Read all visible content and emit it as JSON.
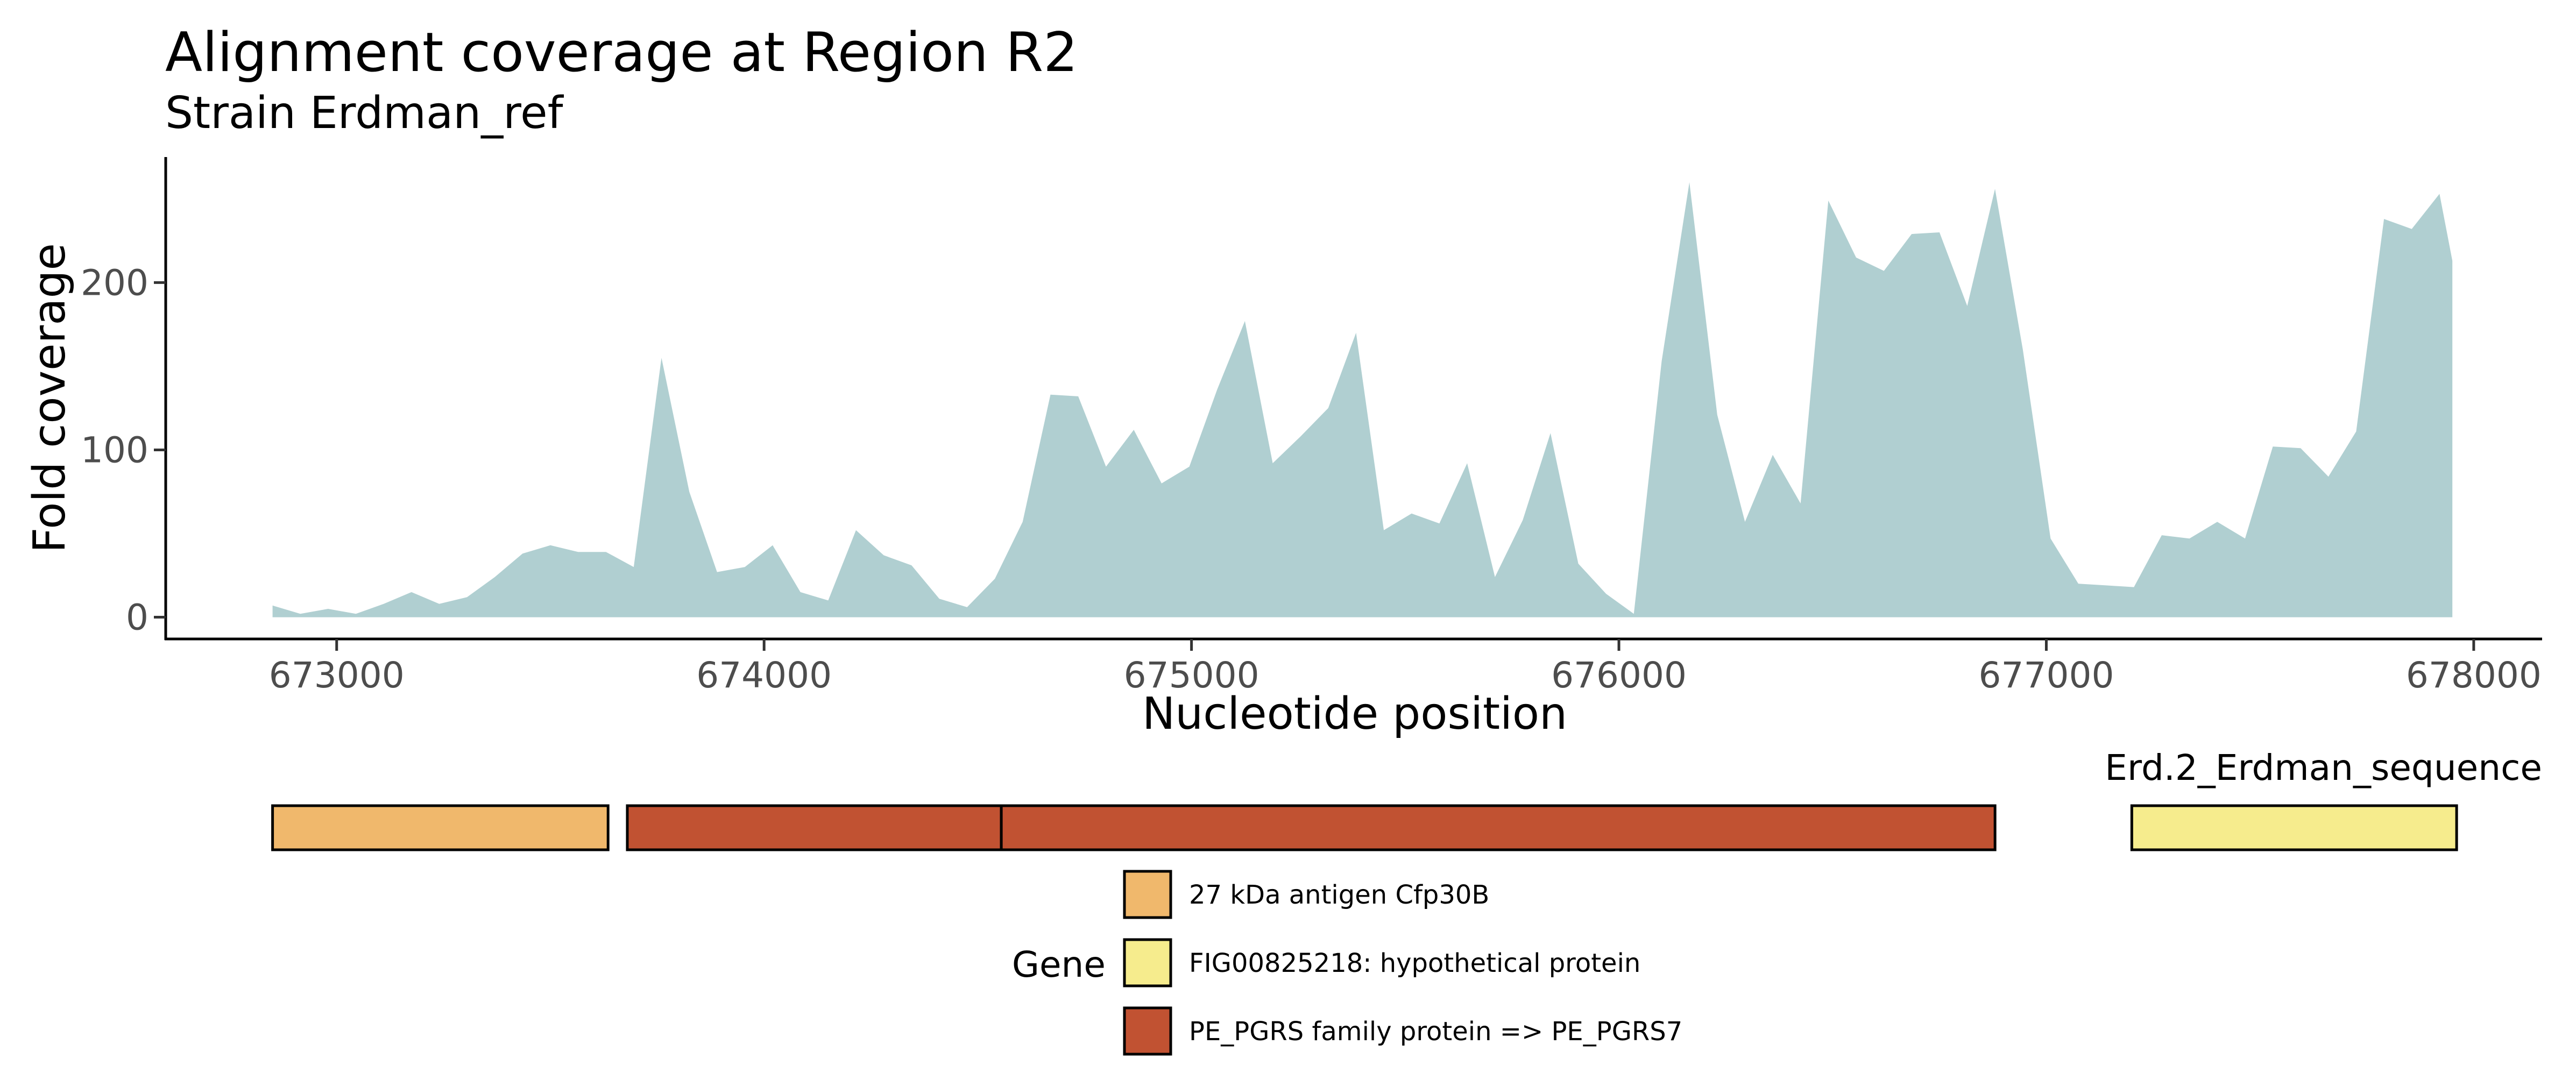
{
  "chart_data": {
    "type": "area",
    "title": "Alignment coverage at Region R2",
    "subtitle": "Strain Erdman_ref",
    "xlabel": "Nucleotide position",
    "ylabel": "Fold coverage",
    "xlim": [
      672600,
      678160
    ],
    "ylim": [
      -13,
      275
    ],
    "xticks": [
      673000,
      674000,
      675000,
      676000,
      677000,
      678000
    ],
    "xtick_labels": [
      "673000",
      "674000",
      "675000",
      "676000",
      "677000",
      "678000"
    ],
    "yticks": [
      0,
      100,
      200
    ],
    "ytick_labels": [
      "0",
      "100",
      "200"
    ],
    "grid": false,
    "fill_color": "#b0cfd1",
    "series": [
      {
        "x": [
          672850,
          672915,
          672980,
          673045,
          673110,
          673175,
          673240,
          673305,
          673370,
          673435,
          673500,
          673565,
          673630,
          673695,
          673760,
          673825,
          673890,
          673955,
          674020,
          674085,
          674150,
          674215,
          674280,
          674345,
          674410,
          674475,
          674540,
          674605,
          674670,
          674735,
          674800,
          674865,
          674930,
          674995,
          675060,
          675125,
          675190,
          675255,
          675320,
          675385,
          675450,
          675515,
          675580,
          675645,
          675710,
          675775,
          675840,
          675905,
          675970,
          676035,
          676100,
          676165,
          676230,
          676295,
          676360,
          676425,
          676490,
          676555,
          676620,
          676685,
          676750,
          676815,
          676880,
          676945,
          677010,
          677075,
          677140,
          677205,
          677270,
          677335,
          677400,
          677465,
          677530,
          677595,
          677660,
          677725,
          677790,
          677855,
          677920,
          677950
        ],
        "values": [
          7,
          2,
          5,
          2,
          8,
          15,
          8,
          12,
          24,
          38,
          43,
          39,
          39,
          30,
          155,
          75,
          27,
          30,
          43,
          15,
          10,
          52,
          37,
          31,
          11,
          6,
          23,
          57,
          133,
          132,
          90,
          112,
          80,
          90,
          136,
          177,
          92,
          108,
          125,
          170,
          52,
          62,
          56,
          92,
          24,
          58,
          110,
          32,
          14,
          2,
          153,
          260,
          121,
          57,
          97,
          68,
          249,
          215,
          207,
          229,
          230,
          186,
          256,
          160,
          47,
          20,
          19,
          18,
          49,
          47,
          57,
          47,
          102,
          101,
          84,
          111,
          238,
          232,
          253,
          213
        ]
      }
    ]
  },
  "gene_track": {
    "label": "Erd.2_Erdman_sequence",
    "genes": [
      {
        "start": 672850,
        "end": 673635,
        "color": "#f0b86c"
      },
      {
        "start": 673680,
        "end": 674555,
        "color": "#c15232"
      },
      {
        "start": 674555,
        "end": 676880,
        "color": "#c15232"
      },
      {
        "start": 677200,
        "end": 677960,
        "color": "#f6ec8d"
      }
    ]
  },
  "legend": {
    "title": "Gene",
    "items": [
      {
        "label": "27 kDa antigen Cfp30B",
        "color": "#f0b86c"
      },
      {
        "label": "FIG00825218: hypothetical protein",
        "color": "#f6ec8d"
      },
      {
        "label": "PE_PGRS family protein => PE_PGRS7",
        "color": "#c15232"
      }
    ]
  }
}
